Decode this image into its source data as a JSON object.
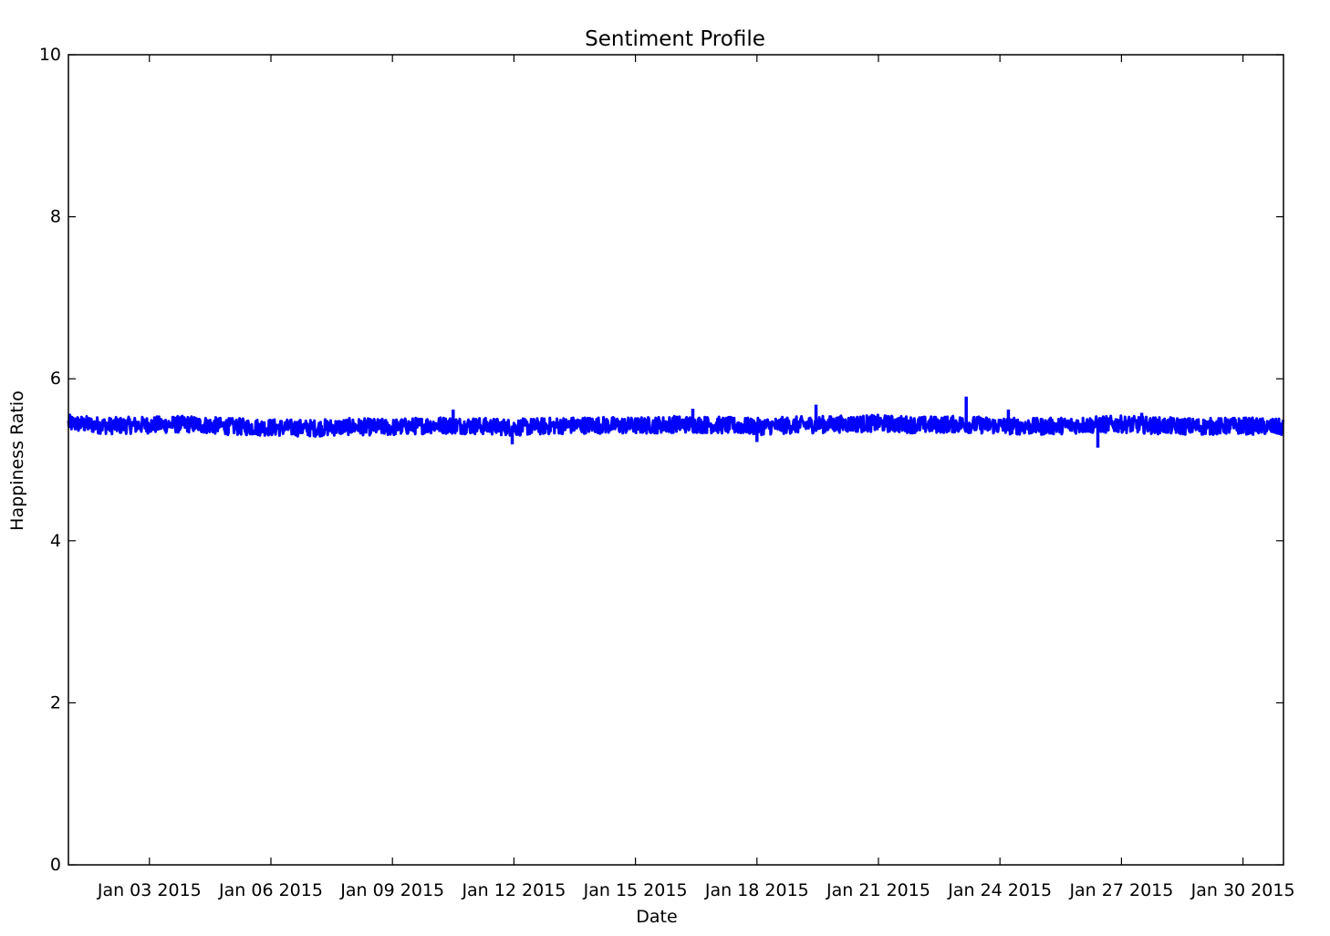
{
  "chart_data": {
    "type": "line",
    "title": "Sentiment Profile",
    "xlabel": "Date",
    "ylabel": "Happiness Ratio",
    "ylim": [
      0,
      10
    ],
    "yticks": [
      "0",
      "2",
      "4",
      "6",
      "8",
      "10"
    ],
    "xlim": [
      "2015-01-01",
      "2015-01-31"
    ],
    "xticks": [
      {
        "date": "2015-01-03",
        "label": "Jan 03 2015"
      },
      {
        "date": "2015-01-06",
        "label": "Jan 06 2015"
      },
      {
        "date": "2015-01-09",
        "label": "Jan 09 2015"
      },
      {
        "date": "2015-01-12",
        "label": "Jan 12 2015"
      },
      {
        "date": "2015-01-15",
        "label": "Jan 15 2015"
      },
      {
        "date": "2015-01-18",
        "label": "Jan 18 2015"
      },
      {
        "date": "2015-01-21",
        "label": "Jan 21 2015"
      },
      {
        "date": "2015-01-24",
        "label": "Jan 24 2015"
      },
      {
        "date": "2015-01-27",
        "label": "Jan 27 2015"
      },
      {
        "date": "2015-01-30",
        "label": "Jan 30 2015"
      }
    ],
    "grid": false,
    "series": [
      {
        "color": "#0000ff",
        "baseline_range": [
          5.3,
          5.52
        ],
        "x": [
          "2015-01-01",
          "2015-01-02",
          "2015-01-03",
          "2015-01-04",
          "2015-01-05",
          "2015-01-06",
          "2015-01-07",
          "2015-01-08",
          "2015-01-09",
          "2015-01-10",
          "2015-01-11",
          "2015-01-12",
          "2015-01-13",
          "2015-01-14",
          "2015-01-15",
          "2015-01-16",
          "2015-01-17",
          "2015-01-18",
          "2015-01-19",
          "2015-01-20",
          "2015-01-21",
          "2015-01-22",
          "2015-01-23",
          "2015-01-24",
          "2015-01-25",
          "2015-01-26",
          "2015-01-27",
          "2015-01-28",
          "2015-01-29",
          "2015-01-30",
          "2015-01-31"
        ],
        "y": [
          5.45,
          5.42,
          5.43,
          5.44,
          5.41,
          5.4,
          5.39,
          5.41,
          5.4,
          5.43,
          5.42,
          5.4,
          5.42,
          5.43,
          5.42,
          5.44,
          5.43,
          5.41,
          5.43,
          5.44,
          5.45,
          5.43,
          5.44,
          5.42,
          5.41,
          5.43,
          5.44,
          5.42,
          5.41,
          5.42,
          5.4
        ],
        "spikes": [
          {
            "x": "2015-01-10T12:00",
            "y": 5.62
          },
          {
            "x": "2015-01-16T10:00",
            "y": 5.63
          },
          {
            "x": "2015-01-19T11:00",
            "y": 5.68
          },
          {
            "x": "2015-01-23T04:00",
            "y": 5.78
          },
          {
            "x": "2015-01-24T05:00",
            "y": 5.62
          },
          {
            "x": "2015-01-27T12:00",
            "y": 5.58
          },
          {
            "x": "2015-01-11T23:00",
            "y": 5.19
          },
          {
            "x": "2015-01-18T00:00",
            "y": 5.22
          },
          {
            "x": "2015-01-26T10:00",
            "y": 5.15
          }
        ]
      }
    ]
  }
}
